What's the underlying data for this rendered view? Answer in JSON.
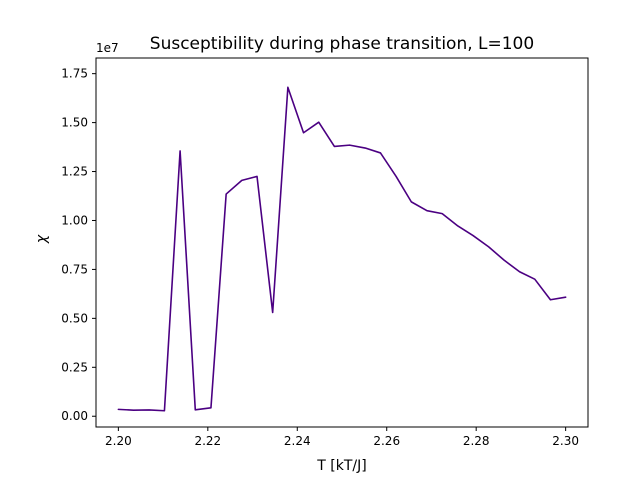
{
  "chart_data": {
    "type": "line",
    "title": "Susceptibility during phase transition, L=100",
    "xlabel": "T [kT/J]",
    "ylabel": "χ",
    "y_offset_label": "1e7",
    "xlim": [
      2.195,
      2.305
    ],
    "ylim": [
      -550000,
      18300000
    ],
    "x_ticks": [
      2.2,
      2.22,
      2.24,
      2.26,
      2.28,
      2.3
    ],
    "x_tick_labels": [
      "2.20",
      "2.22",
      "2.24",
      "2.26",
      "2.28",
      "2.30"
    ],
    "y_ticks": [
      0,
      2500000,
      5000000,
      7500000,
      10000000,
      12500000,
      15000000,
      17500000
    ],
    "y_tick_labels": [
      "0.00",
      "0.25",
      "0.50",
      "0.75",
      "1.00",
      "1.25",
      "1.50",
      "1.75"
    ],
    "grid": false,
    "line_color": "#4b0082",
    "series": [
      {
        "x": [
          2.2,
          2.2034,
          2.2069,
          2.2103,
          2.2138,
          2.2172,
          2.2207,
          2.2241,
          2.2276,
          2.231,
          2.2345,
          2.2379,
          2.2414,
          2.2448,
          2.2483,
          2.2517,
          2.2552,
          2.2586,
          2.2621,
          2.2655,
          2.269,
          2.2724,
          2.2759,
          2.2793,
          2.2828,
          2.2862,
          2.2897,
          2.2931,
          2.2966,
          2.3
        ],
        "y": [
          350000,
          310000,
          320000,
          280000,
          13550000,
          330000,
          430000,
          11350000,
          12050000,
          12250000,
          5300000,
          16800000,
          14480000,
          15020000,
          13780000,
          13850000,
          13700000,
          13450000,
          12250000,
          10950000,
          10500000,
          10350000,
          9720000,
          9230000,
          8650000,
          7980000,
          7380000,
          7000000,
          5950000,
          6080000
        ]
      }
    ]
  }
}
